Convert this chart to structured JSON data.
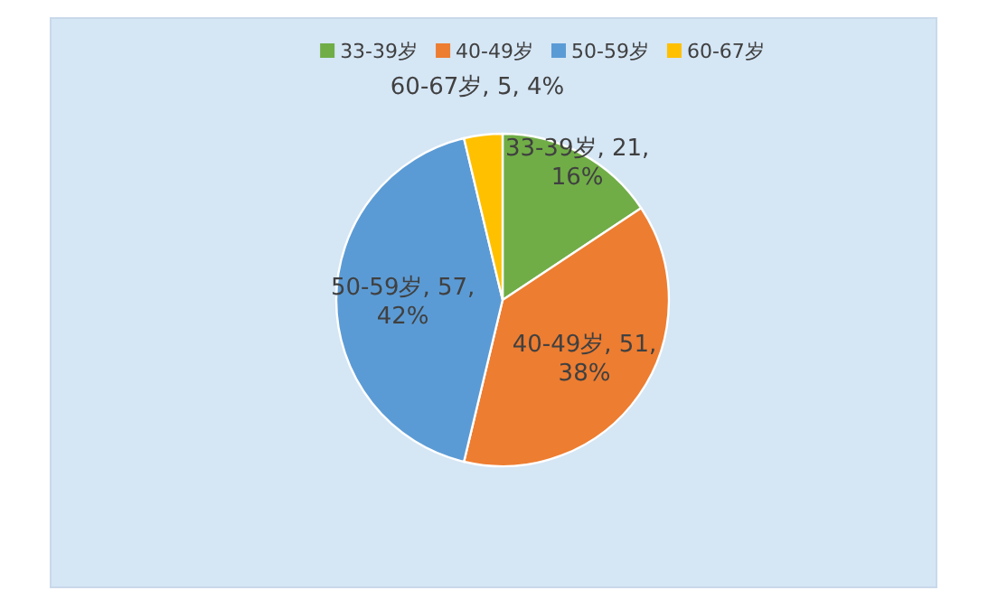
{
  "chart_data": {
    "type": "pie",
    "categories": [
      "33-39岁",
      "40-49岁",
      "50-59岁",
      "60-67岁"
    ],
    "values": [
      21,
      51,
      57,
      5
    ],
    "colors": [
      "#70ad47",
      "#ed7d31",
      "#5b9bd5",
      "#ffc000"
    ],
    "value_labels": [
      "33-39岁, 21, 16%",
      "40-49岁, 51, 38%",
      "50-59岁, 57, 42%",
      "60-67岁, 5, 4%"
    ],
    "legend": "top"
  }
}
